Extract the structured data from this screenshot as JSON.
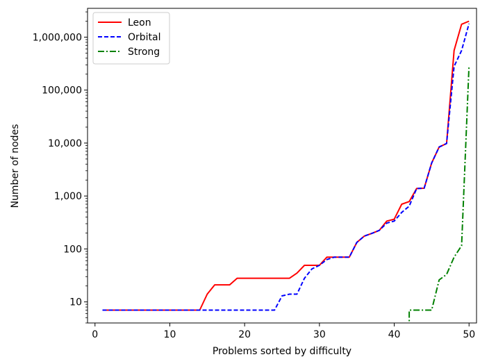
{
  "chart_data": {
    "type": "line",
    "xlabel": "Problems sorted by difficulty",
    "ylabel": "Number of nodes",
    "xlim": [
      -1,
      51
    ],
    "ylim": [
      4,
      3500000
    ],
    "yscale": "log",
    "grid": false,
    "legend_position": "top-left",
    "x_ticks": [
      0,
      10,
      20,
      30,
      40,
      50
    ],
    "x_tick_labels": [
      "0",
      "10",
      "20",
      "30",
      "40",
      "50"
    ],
    "y_ticks": [
      10,
      100,
      1000,
      10000,
      100000,
      1000000
    ],
    "y_tick_labels": [
      "10",
      "100",
      "1,000",
      "10,000",
      "100,000",
      "1,000,000"
    ],
    "series": [
      {
        "name": "Leon",
        "color": "#ff0000",
        "style": "solid",
        "x": [
          1,
          2,
          3,
          4,
          5,
          6,
          7,
          8,
          9,
          10,
          11,
          12,
          13,
          14,
          15,
          16,
          17,
          18,
          19,
          20,
          21,
          22,
          23,
          24,
          25,
          26,
          27,
          28,
          29,
          30,
          31,
          32,
          33,
          34,
          35,
          36,
          37,
          38,
          39,
          40,
          41,
          42,
          43,
          44,
          45,
          46,
          47,
          48,
          49,
          50
        ],
        "y": [
          7,
          7,
          7,
          7,
          7,
          7,
          7,
          7,
          7,
          7,
          7,
          7,
          7,
          7,
          14,
          21,
          21,
          21,
          28,
          28,
          28,
          28,
          28,
          28,
          28,
          28,
          35,
          49,
          49,
          49,
          70,
          70,
          70,
          70,
          133,
          175,
          196,
          224,
          336,
          364,
          700,
          784,
          1386,
          1400,
          4200,
          8400,
          9800,
          560000,
          1750000,
          2000000
        ]
      },
      {
        "name": "Orbital",
        "color": "#0000ff",
        "style": "dashed",
        "x": [
          1,
          2,
          3,
          4,
          5,
          6,
          7,
          8,
          9,
          10,
          11,
          12,
          13,
          14,
          15,
          16,
          17,
          18,
          19,
          20,
          21,
          22,
          23,
          24,
          25,
          26,
          27,
          28,
          29,
          30,
          31,
          32,
          33,
          34,
          35,
          36,
          37,
          38,
          39,
          40,
          41,
          42,
          43,
          44,
          45,
          46,
          47,
          48,
          49,
          50
        ],
        "y": [
          7,
          7,
          7,
          7,
          7,
          7,
          7,
          7,
          7,
          7,
          7,
          7,
          7,
          7,
          7,
          7,
          7,
          7,
          7,
          7,
          7,
          7,
          7,
          7,
          13,
          14,
          14,
          28,
          42,
          49,
          63,
          70,
          70,
          70,
          133,
          175,
          196,
          224,
          308,
          336,
          490,
          644,
          1386,
          1400,
          4200,
          8400,
          9800,
          280000,
          560000,
          1800000
        ]
      },
      {
        "name": "Strong",
        "color": "#008000",
        "style": "dashdot",
        "x": [
          42,
          42,
          43,
          44,
          45,
          46,
          47,
          48,
          49,
          50
        ],
        "y": [
          3,
          7,
          7,
          7,
          7,
          26,
          33,
          70,
          115,
          290000
        ]
      }
    ]
  }
}
